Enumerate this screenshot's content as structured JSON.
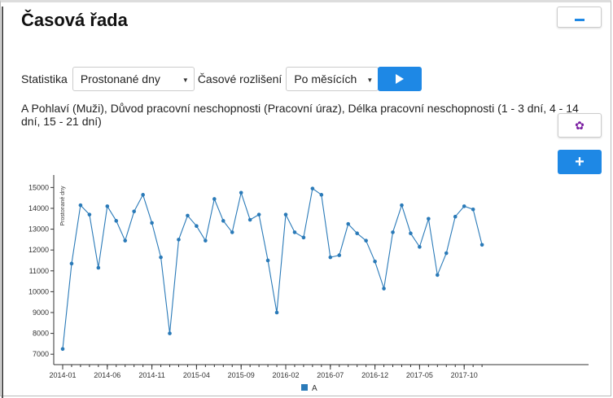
{
  "title": "Časová řada",
  "controls": {
    "statistic_label": "Statistika",
    "statistic_value": "Prostonané dny",
    "resolution_label": "Časové rozlišení",
    "resolution_value": "Po měsících"
  },
  "description": "A Pohlaví (Muži), Důvod pracovní neschopnosti (Pracovní úraz), Délka pracovní neschopnosti (1 - 3 dní, 4 - 14 dní, 15 - 21 dní)",
  "colors": {
    "accent": "#1e88e5",
    "series": "#2a7ab8",
    "gear": "#7b1fa2"
  },
  "icons": {
    "minus": "minus-icon",
    "play": "play-icon",
    "gear": "gear-icon",
    "plus": "plus-icon"
  },
  "chart_data": {
    "type": "line",
    "ylabel": "Prostonané dny",
    "xlabel": "",
    "ylim": [
      6500,
      15600
    ],
    "yticks": [
      7000,
      8000,
      9000,
      10000,
      11000,
      12000,
      13000,
      14000,
      15000
    ],
    "xtick_labels": [
      "2014-01",
      "2014-06",
      "2014-11",
      "2015-04",
      "2015-09",
      "2016-02",
      "2016-07",
      "2016-12",
      "2017-05",
      "2017-10"
    ],
    "x": [
      "2014-01",
      "2014-02",
      "2014-03",
      "2014-04",
      "2014-05",
      "2014-06",
      "2014-07",
      "2014-08",
      "2014-09",
      "2014-10",
      "2014-11",
      "2014-12",
      "2015-01",
      "2015-02",
      "2015-03",
      "2015-04",
      "2015-05",
      "2015-06",
      "2015-07",
      "2015-08",
      "2015-09",
      "2015-10",
      "2015-11",
      "2015-12",
      "2016-01",
      "2016-02",
      "2016-03",
      "2016-04",
      "2016-05",
      "2016-06",
      "2016-07",
      "2016-08",
      "2016-09",
      "2016-10",
      "2016-11",
      "2016-12",
      "2017-01",
      "2017-02",
      "2017-03",
      "2017-04",
      "2017-05",
      "2017-06",
      "2017-07",
      "2017-08",
      "2017-09",
      "2017-10",
      "2017-11",
      "2017-12"
    ],
    "series": [
      {
        "name": "A",
        "values": [
          7250,
          11350,
          14150,
          13700,
          11150,
          14100,
          13400,
          12450,
          13850,
          14650,
          13300,
          11650,
          8000,
          12500,
          13650,
          13150,
          12450,
          14450,
          13400,
          12850,
          14750,
          13450,
          13700,
          11500,
          9000,
          13700,
          12850,
          12600,
          14950,
          14650,
          11650,
          11750,
          13250,
          12800,
          12450,
          11450,
          10150,
          12850,
          14150,
          12800,
          12150,
          13500,
          10800,
          11850,
          13600,
          14100,
          13950,
          12250
        ]
      }
    ],
    "legend": [
      "A"
    ],
    "legend_position": "bottom-center",
    "grid": false
  }
}
